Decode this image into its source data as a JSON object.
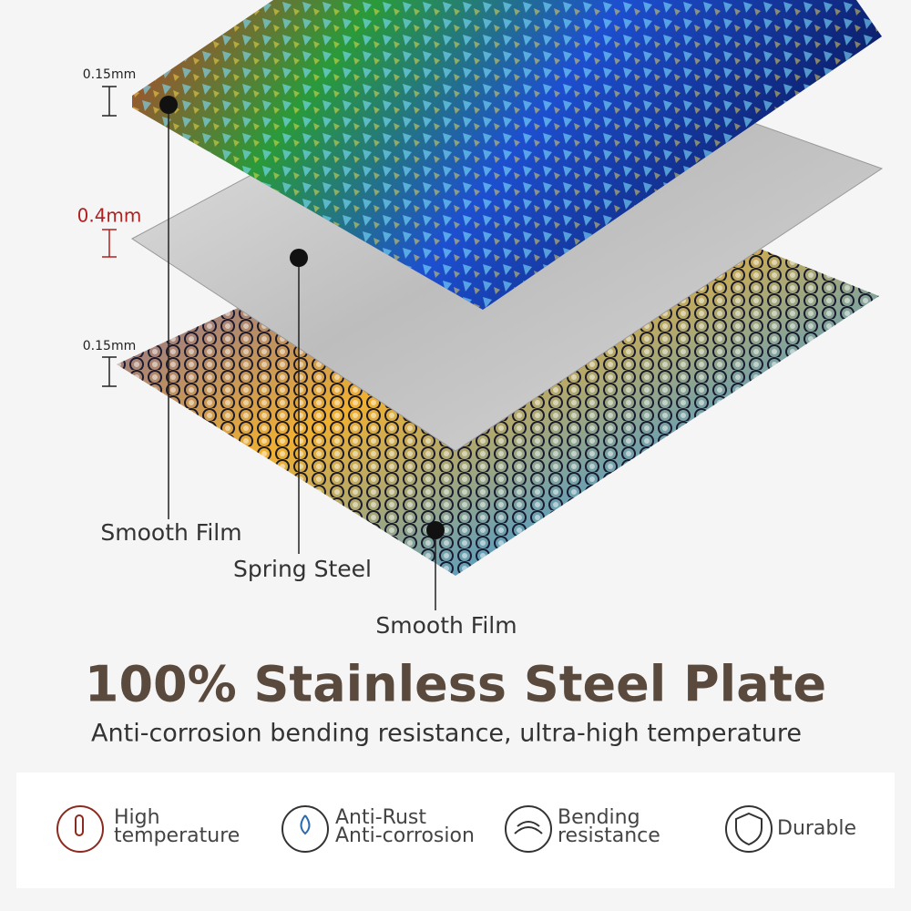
{
  "dimensions": [
    "0.15mm",
    "0.4mm",
    "0.15mm"
  ],
  "layers": [
    "Smooth Film",
    "Spring Steel",
    "Smooth Film"
  ],
  "title": "100% Stainless Steel Plate",
  "subtitle": "Anti-corrosion bending resistance, ultra-high temperature",
  "features": [
    {
      "lines": [
        "High",
        "temperature"
      ]
    },
    {
      "lines": [
        "Anti-Rust",
        "Anti-corrosion"
      ]
    },
    {
      "lines": [
        "Bending",
        "resistance"
      ]
    },
    {
      "lines": [
        "Durable"
      ]
    }
  ]
}
